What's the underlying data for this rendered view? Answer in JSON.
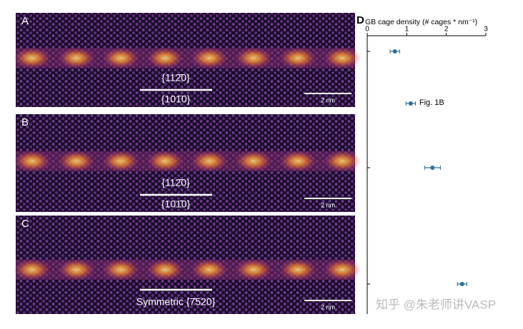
{
  "panels": [
    {
      "label": "A",
      "upper_plane": "{112̄0}",
      "lower_plane": "{101̄0}",
      "scale_bar": "2 nm"
    },
    {
      "label": "B",
      "upper_plane": "{112̄0}",
      "lower_plane": "{101̄0}",
      "scale_bar": "2 nm"
    },
    {
      "label": "C",
      "upper_plane": "Symmetric {7̄520}",
      "scale_bar": "2 nm"
    }
  ],
  "chart_data": {
    "type": "errorbar",
    "panel_label": "D",
    "x_label": "GB cage density (# cages * nm⁻¹)",
    "values": [
      0.7,
      1.1,
      1.65,
      2.4
    ],
    "errors": [
      0.12,
      0.12,
      0.2,
      0.12
    ],
    "color": "#2a6f97",
    "xlim": [
      0,
      3
    ],
    "xticks": [
      0,
      1,
      2,
      3
    ],
    "annotation": "Fig. 1B"
  },
  "watermark": "知乎 @朱老师讲VASP"
}
